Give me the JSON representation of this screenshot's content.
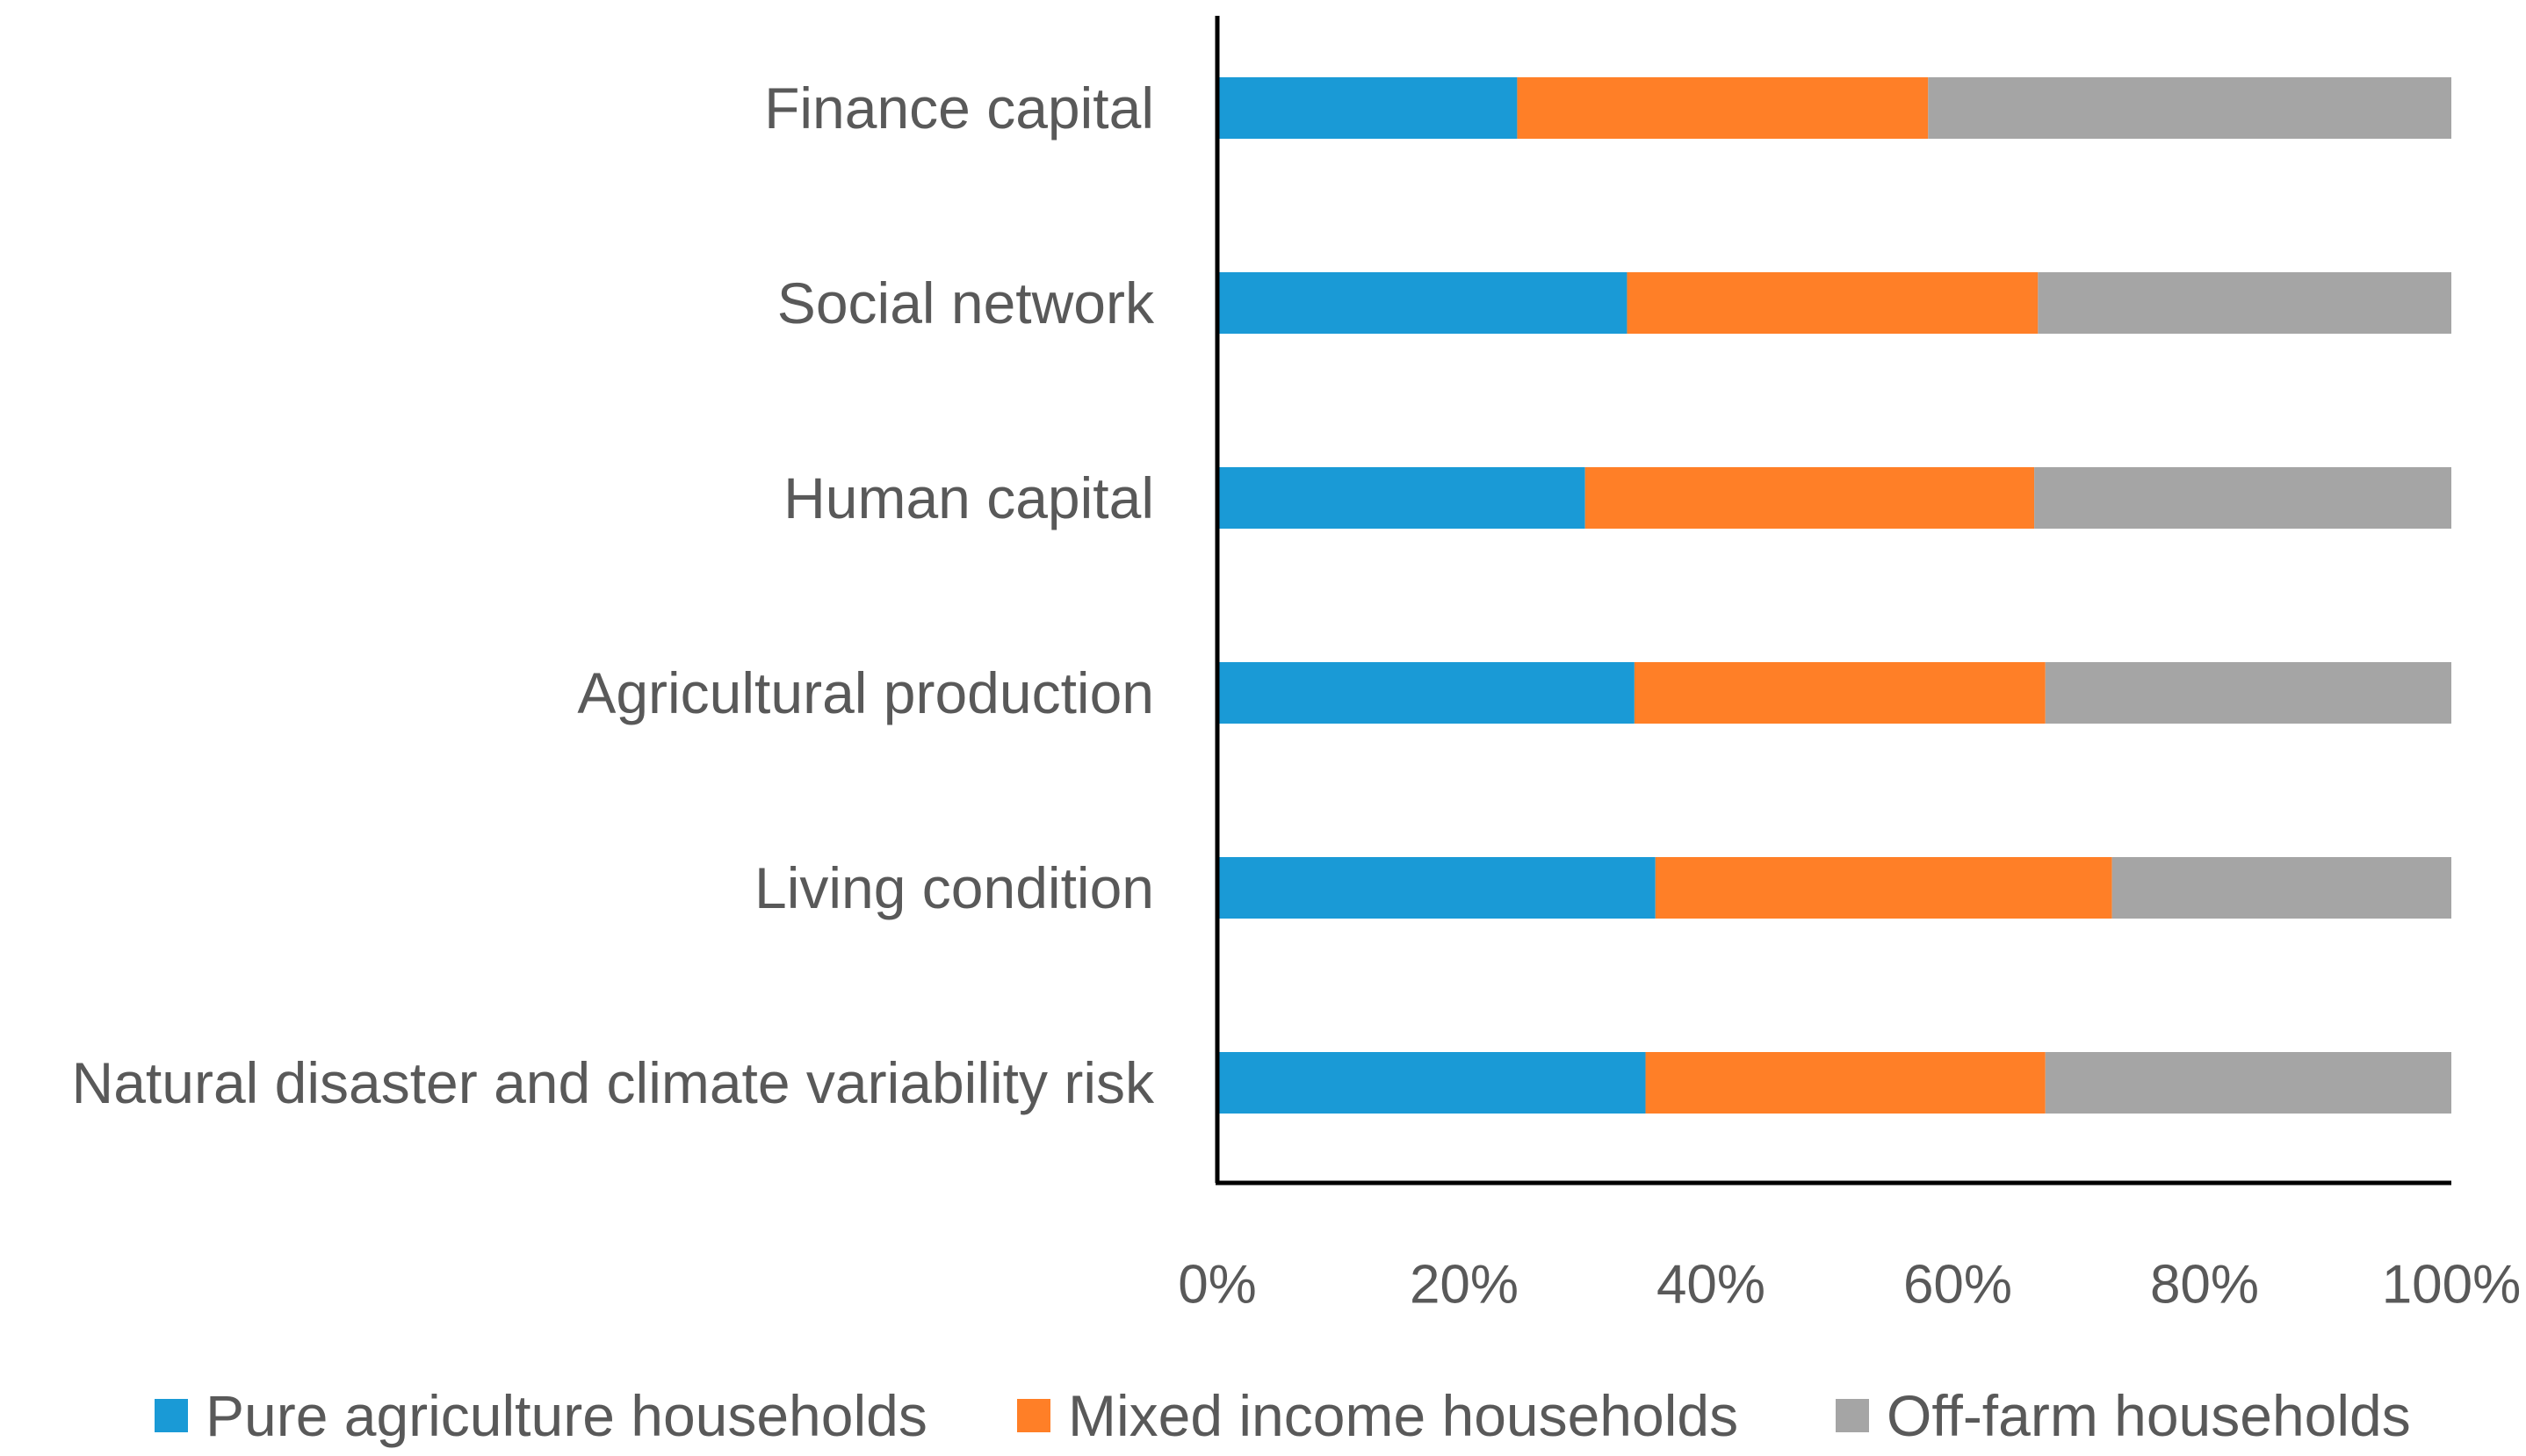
{
  "chart_data": {
    "type": "bar",
    "orientation": "horizontal",
    "stacked": "percent",
    "title": "",
    "xlabel": "",
    "ylabel": "",
    "xlim": [
      0,
      100
    ],
    "grid": false,
    "legend_position": "bottom",
    "categories": [
      "Finance capital",
      "Social network",
      "Human capital",
      "Agricultural production",
      "Living condition",
      "Natural disaster and climate variability risk"
    ],
    "series": [
      {
        "name": "Pure agriculture households",
        "color": "#1A9AD6",
        "values": [
          24.3,
          33.2,
          29.8,
          33.8,
          35.5,
          34.7
        ]
      },
      {
        "name": "Mixed income households",
        "color": "#FF7F27",
        "values": [
          33.3,
          33.3,
          36.4,
          33.3,
          37.0,
          32.4
        ]
      },
      {
        "name": "Off-farm households",
        "color": "#A5A5A5",
        "values": [
          42.4,
          33.5,
          33.8,
          32.9,
          27.5,
          32.9
        ]
      }
    ],
    "x_tick_labels": [
      "0%",
      "20%",
      "40%",
      "60%",
      "80%",
      "100%"
    ],
    "x_tick_values": [
      0,
      20,
      40,
      60,
      80,
      100
    ]
  }
}
